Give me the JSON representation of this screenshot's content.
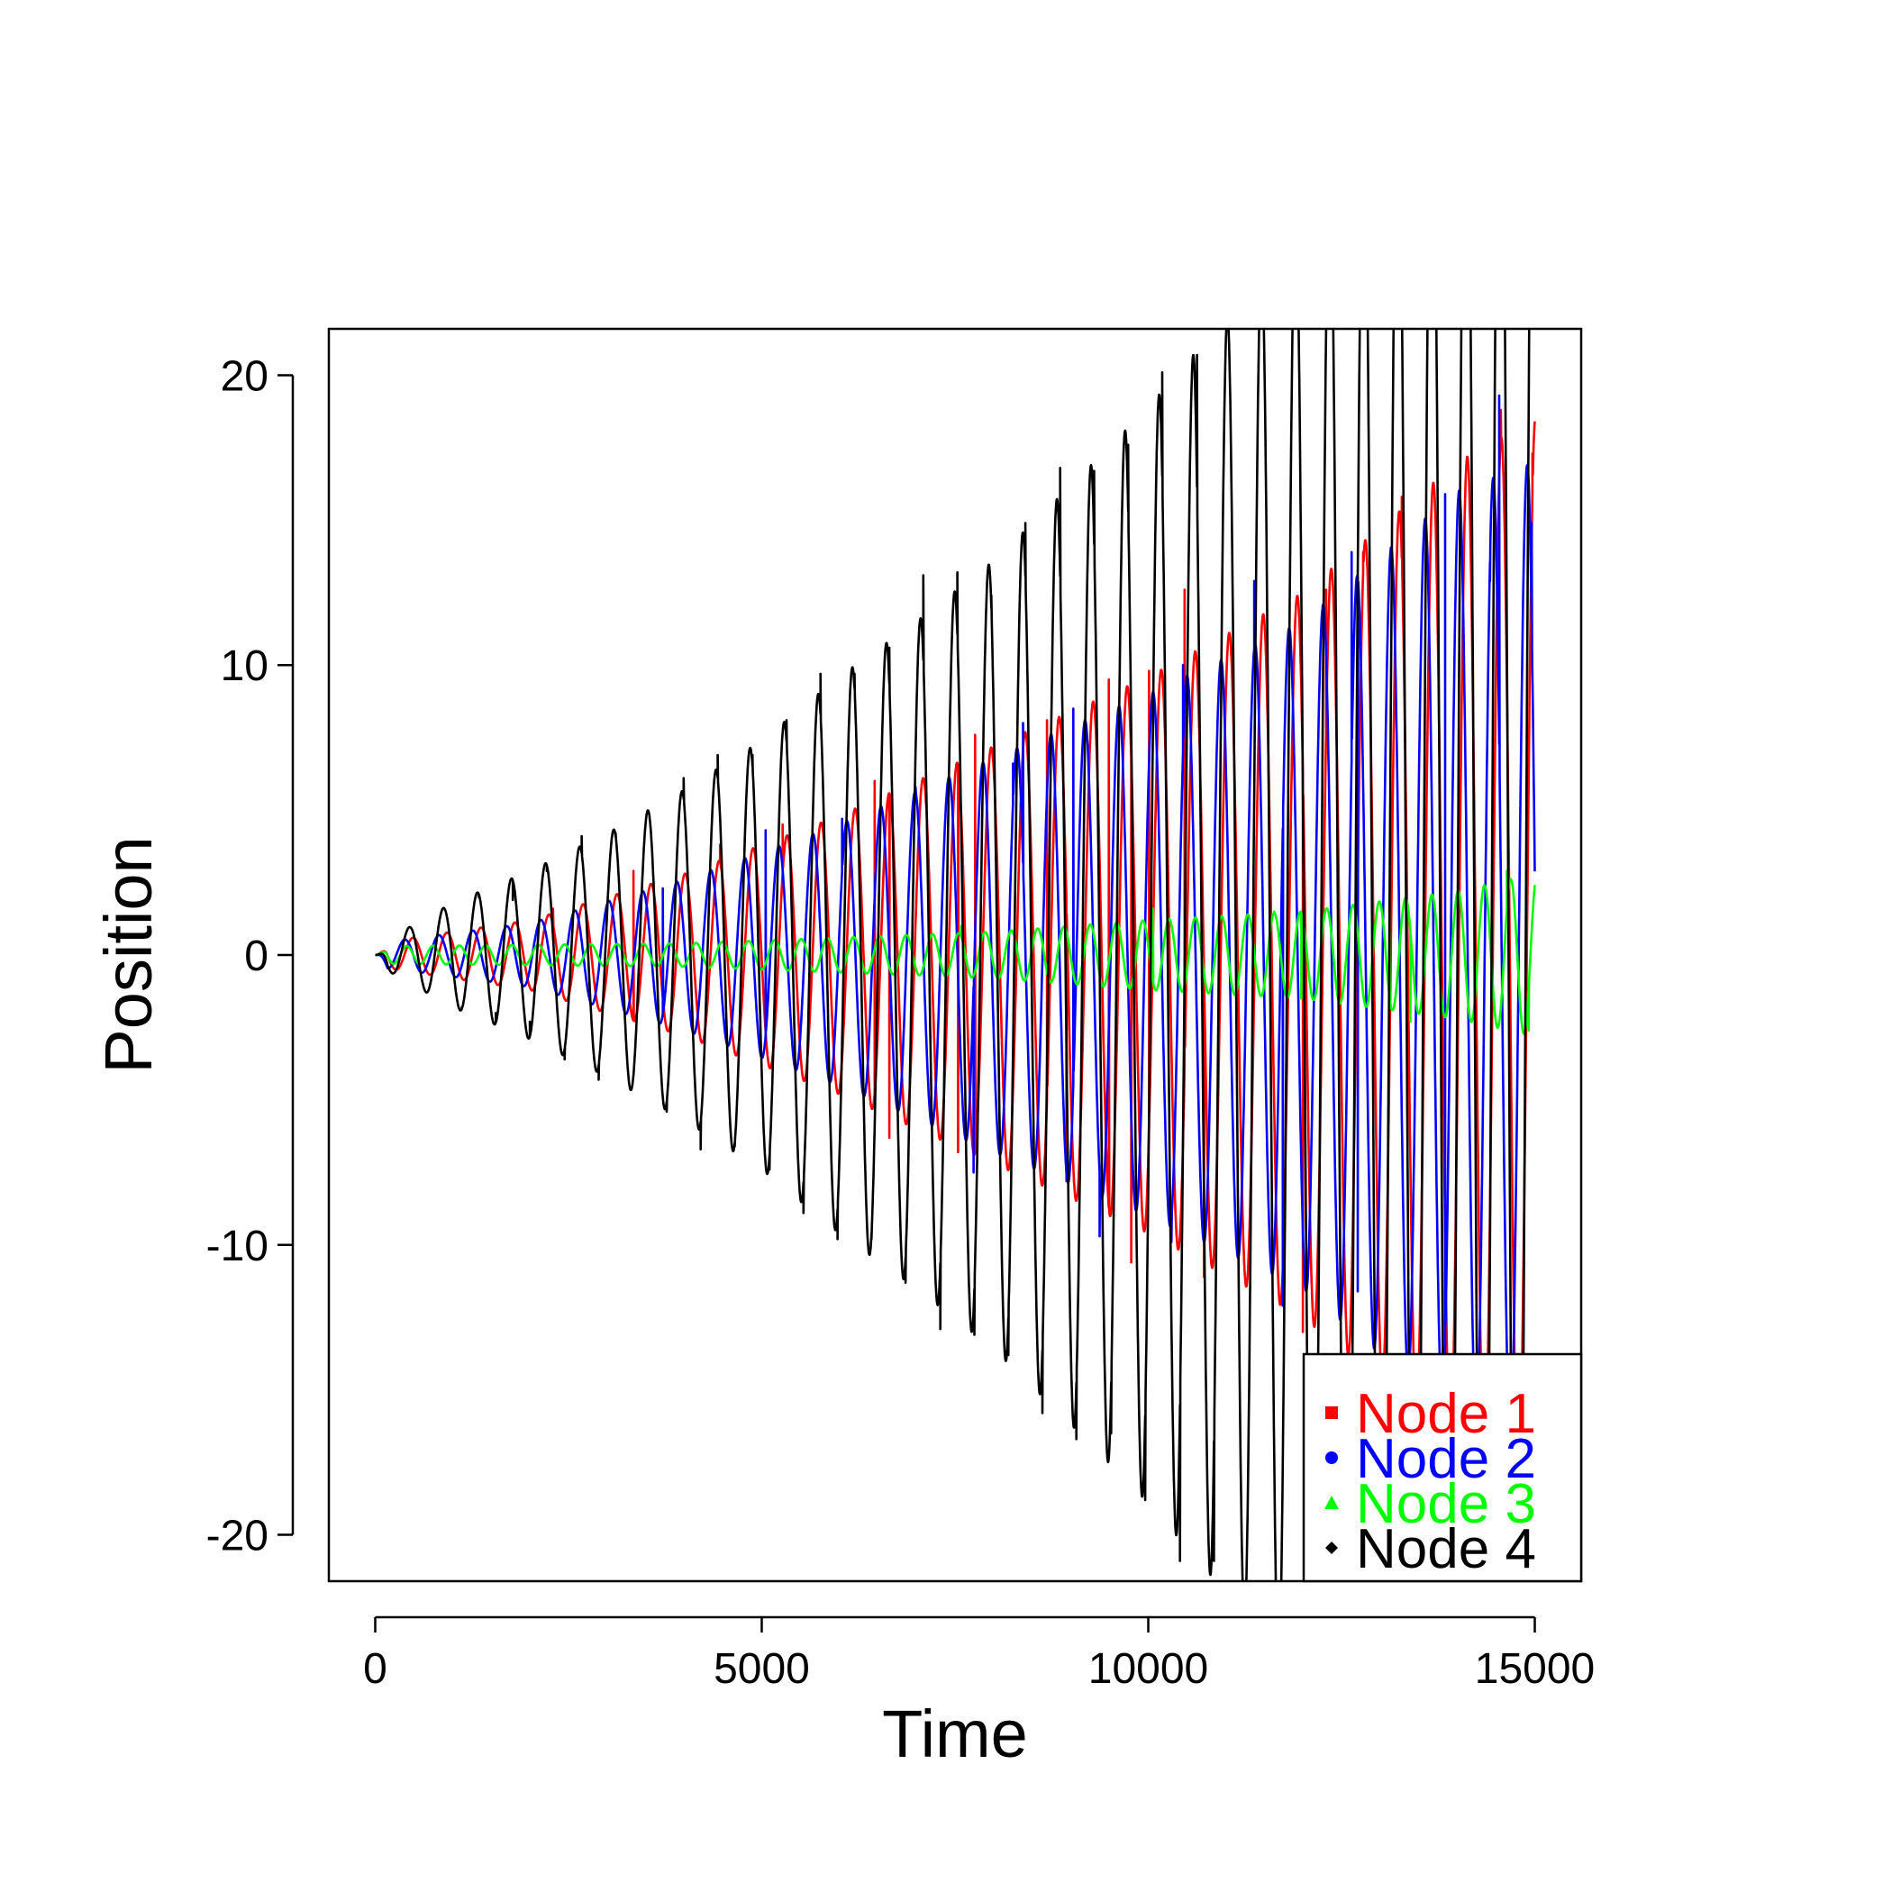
{
  "chart_data": {
    "type": "line",
    "title": "",
    "xlabel": "Time",
    "ylabel": "Position",
    "xlim": [
      -600,
      15600
    ],
    "ylim": [
      -21.6,
      21.6
    ],
    "xticks": [
      0,
      5000,
      10000,
      15000
    ],
    "xtick_labels": [
      "0",
      "5000",
      "10000",
      "15000"
    ],
    "yticks": [
      -20,
      -10,
      0,
      10,
      20
    ],
    "ytick_labels": [
      "-20",
      "-10",
      "0",
      "10",
      "20"
    ],
    "grid": false,
    "legend_position": "bottom-right",
    "series": [
      {
        "name": "Node 1",
        "color": "#ff0000",
        "marker": "square",
        "period": 440,
        "phase": 0.9,
        "envelope": {
          "t": [
            0,
            2000,
            4000,
            6000,
            8000,
            10000,
            12000,
            14000,
            15000
          ],
          "amp": [
            0.4,
            1.2,
            2.8,
            4.8,
            7.2,
            9.6,
            12.5,
            17,
            18.5
          ]
        },
        "peaks": [
          {
            "t": 2300,
            "y": 1.6
          },
          {
            "t": 3340,
            "y": 2.9
          },
          {
            "t": 4460,
            "y": 3.8
          },
          {
            "t": 5270,
            "y": 4.5
          },
          {
            "t": 6460,
            "y": 6.0
          },
          {
            "t": 7760,
            "y": 7.6
          },
          {
            "t": 8690,
            "y": 8.1
          },
          {
            "t": 9490,
            "y": 9.5
          },
          {
            "t": 10010,
            "y": 9.8
          },
          {
            "t": 10470,
            "y": 12.6
          },
          {
            "t": 12300,
            "y": 12.6
          },
          {
            "t": 12780,
            "y": 13.9
          },
          {
            "t": 13280,
            "y": 15.8
          },
          {
            "t": 14560,
            "y": 18.8
          },
          {
            "t": 14970,
            "y": 17.3
          }
        ],
        "troughs": [
          {
            "t": 6650,
            "y": -6.3
          },
          {
            "t": 7540,
            "y": -6.8
          },
          {
            "t": 8940,
            "y": -7.8
          },
          {
            "t": 9780,
            "y": -10.6
          },
          {
            "t": 10720,
            "y": -11.1
          },
          {
            "t": 12000,
            "y": -13.0
          }
        ]
      },
      {
        "name": "Node 2",
        "color": "#0000ff",
        "marker": "circle",
        "period": 440,
        "phase": 2.4,
        "envelope": {
          "t": [
            0,
            2000,
            4000,
            6000,
            8000,
            10000,
            12000,
            14000,
            15000
          ],
          "amp": [
            0.4,
            1.1,
            2.6,
            4.5,
            6.8,
            9.0,
            11.5,
            16,
            17
          ]
        },
        "peaks": [
          {
            "t": 3720,
            "y": 2.3
          },
          {
            "t": 5050,
            "y": 4.3
          },
          {
            "t": 6040,
            "y": 4.7
          },
          {
            "t": 6990,
            "y": 5.8
          },
          {
            "t": 8250,
            "y": 6.6
          },
          {
            "t": 8380,
            "y": 8.0
          },
          {
            "t": 9030,
            "y": 8.5
          },
          {
            "t": 10450,
            "y": 10.0
          },
          {
            "t": 11370,
            "y": 12.9
          },
          {
            "t": 12250,
            "y": 11.5
          },
          {
            "t": 12630,
            "y": 13.9
          },
          {
            "t": 13840,
            "y": 15.9
          },
          {
            "t": 14420,
            "y": 12.9
          },
          {
            "t": 14540,
            "y": 19.3
          },
          {
            "t": 14960,
            "y": 14.9
          }
        ],
        "troughs": [
          {
            "t": 7740,
            "y": -7.5
          },
          {
            "t": 9370,
            "y": -9.7
          },
          {
            "t": 10300,
            "y": -9.9
          },
          {
            "t": 11740,
            "y": -12.1
          },
          {
            "t": 12710,
            "y": -11.6
          },
          {
            "t": 13840,
            "y": -11.6
          }
        ]
      },
      {
        "name": "Node 3",
        "color": "#00ff00",
        "marker": "triangle",
        "period": 340,
        "phase": 0.3,
        "envelope": {
          "t": [
            0,
            2000,
            4000,
            6000,
            8000,
            10000,
            12000,
            14000,
            15000
          ],
          "amp": [
            0.3,
            0.35,
            0.4,
            0.6,
            0.8,
            1.2,
            1.5,
            2.2,
            2.8
          ]
        },
        "peaks": [
          {
            "t": 7580,
            "y": 1.0
          },
          {
            "t": 10060,
            "y": 1.6
          },
          {
            "t": 11630,
            "y": 1.5
          },
          {
            "t": 13120,
            "y": 2.1
          },
          {
            "t": 14640,
            "y": 2.9
          }
        ],
        "troughs": [
          {
            "t": 11980,
            "y": -1.5
          },
          {
            "t": 13390,
            "y": -2.3
          },
          {
            "t": 14520,
            "y": -2.4
          },
          {
            "t": 14920,
            "y": -2.6
          }
        ]
      },
      {
        "name": "Node 4",
        "color": "#000000",
        "marker": "diamond",
        "period": 441,
        "phase": 1.6,
        "envelope": {
          "t": [
            0,
            1000,
            2000,
            3000,
            4000,
            5000,
            6000,
            7000,
            8000,
            9000,
            10000,
            11000,
            12000,
            13000,
            15000
          ],
          "amp": [
            0.3,
            1.8,
            2.9,
            4.2,
            5.7,
            7.4,
            9.6,
            11.5,
            13.6,
            16.2,
            18.9,
            22,
            26,
            30,
            36
          ]
        },
        "peaks": [
          {
            "t": 1340,
            "y": 2.0
          },
          {
            "t": 1780,
            "y": 1.9
          },
          {
            "t": 2220,
            "y": 2.9
          },
          {
            "t": 2670,
            "y": 4.1
          },
          {
            "t": 3110,
            "y": 4.2
          },
          {
            "t": 3550,
            "y": 4.7
          },
          {
            "t": 3990,
            "y": 6.1
          },
          {
            "t": 4430,
            "y": 6.9
          },
          {
            "t": 4880,
            "y": 6.9
          },
          {
            "t": 5320,
            "y": 8.1
          },
          {
            "t": 5760,
            "y": 9.7
          },
          {
            "t": 6200,
            "y": 9.7
          },
          {
            "t": 6650,
            "y": 10.6
          },
          {
            "t": 7090,
            "y": 13.1
          },
          {
            "t": 7530,
            "y": 13.2
          },
          {
            "t": 7970,
            "y": 12.4
          },
          {
            "t": 8410,
            "y": 14.9
          },
          {
            "t": 8860,
            "y": 16.8
          },
          {
            "t": 9300,
            "y": 16.7
          },
          {
            "t": 9740,
            "y": 17.6
          },
          {
            "t": 10180,
            "y": 20.1
          },
          {
            "t": 10630,
            "y": 20.7
          }
        ],
        "troughs": [
          {
            "t": 1120,
            "y": -1.8
          },
          {
            "t": 1560,
            "y": -2.0
          },
          {
            "t": 2000,
            "y": -2.3
          },
          {
            "t": 2450,
            "y": -3.6
          },
          {
            "t": 2890,
            "y": -4.3
          },
          {
            "t": 3330,
            "y": -4.4
          },
          {
            "t": 3770,
            "y": -5.4
          },
          {
            "t": 4210,
            "y": -6.7
          },
          {
            "t": 4650,
            "y": -6.6
          },
          {
            "t": 5100,
            "y": -7.4
          },
          {
            "t": 5540,
            "y": -8.9
          },
          {
            "t": 5980,
            "y": -9.8
          },
          {
            "t": 6420,
            "y": -9.8
          },
          {
            "t": 6860,
            "y": -11.3
          },
          {
            "t": 7310,
            "y": -12.9
          },
          {
            "t": 7750,
            "y": -13.1
          },
          {
            "t": 8190,
            "y": -13.8
          },
          {
            "t": 8630,
            "y": -15.8
          },
          {
            "t": 9070,
            "y": -16.7
          },
          {
            "t": 9520,
            "y": -16.5
          },
          {
            "t": 9960,
            "y": -18.8
          },
          {
            "t": 10410,
            "y": -20.9
          },
          {
            "t": 10850,
            "y": -20.9
          }
        ]
      }
    ]
  }
}
